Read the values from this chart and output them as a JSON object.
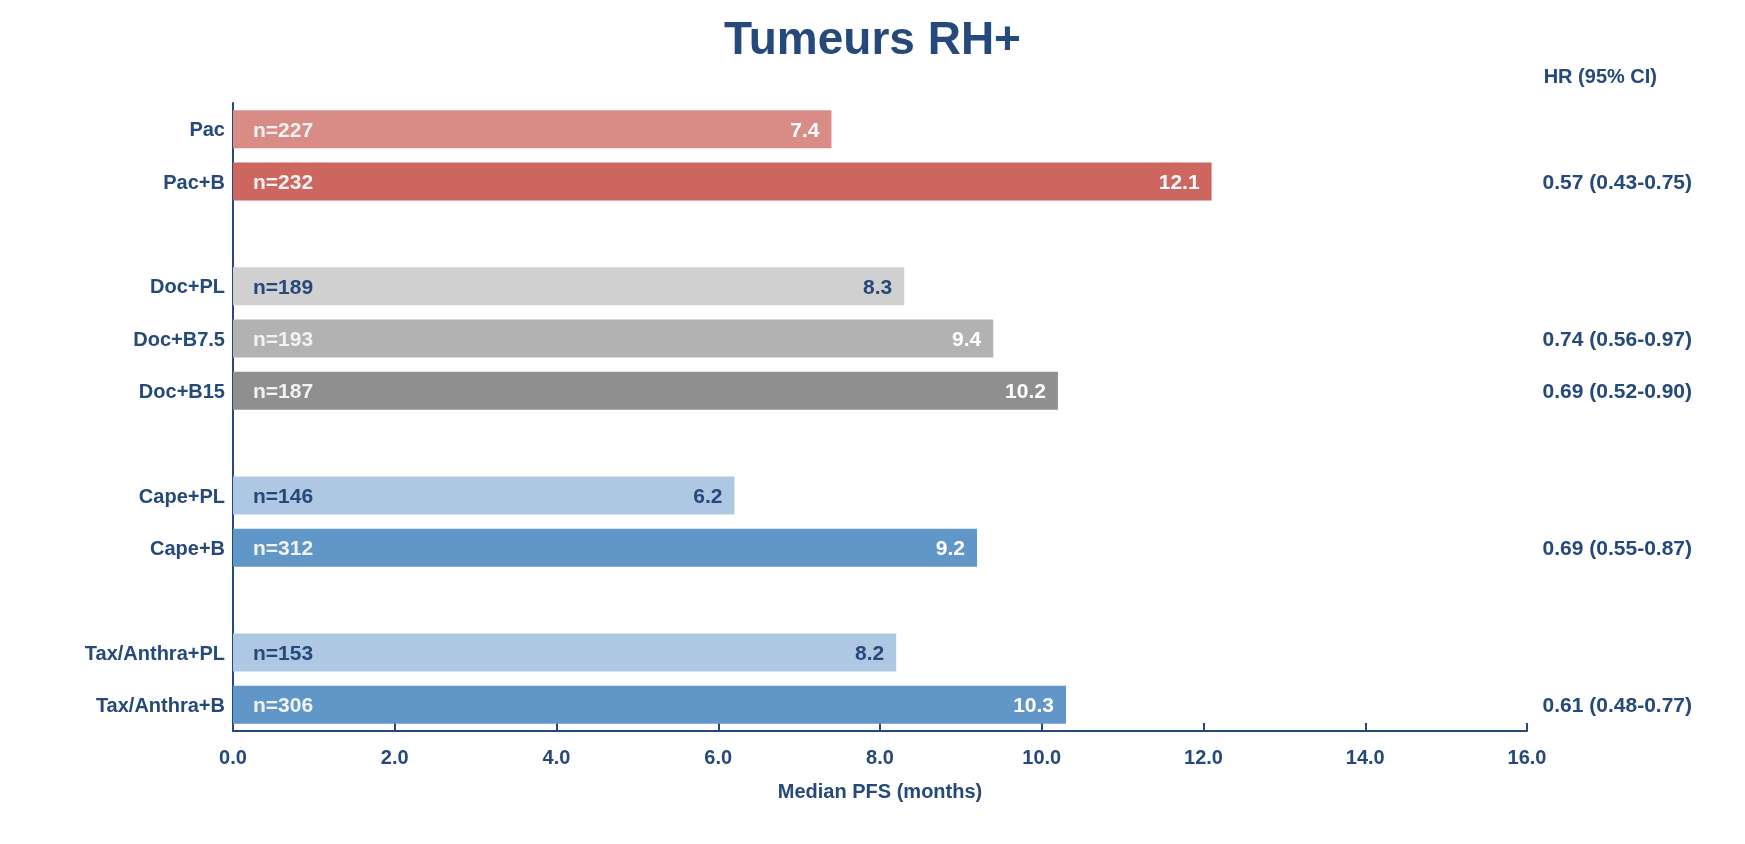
{
  "chart_data": {
    "type": "bar",
    "orientation": "horizontal",
    "title": "Tumeurs RH+",
    "xlabel": "Median PFS (months)",
    "categories": [
      "Pac",
      "Pac+B",
      null,
      "Doc+PL",
      "Doc+B7.5",
      "Doc+B15",
      null,
      "Cape+PL",
      "Cape+B",
      null,
      "Tax/Anthra+PL",
      "Tax/Anthra+B"
    ],
    "values": [
      7.4,
      12.1,
      null,
      8.3,
      9.4,
      10.2,
      null,
      6.2,
      9.2,
      null,
      8.2,
      10.3
    ],
    "colors": [
      "#d98b85",
      "#cd665e",
      null,
      "#d0d0d0",
      "#b2b2b2",
      "#8f8f8f",
      null,
      "#aec7e3",
      "#6096c8",
      null,
      "#aec7e3",
      "#6096c8"
    ],
    "data_labels": true,
    "xlim": [
      0,
      16
    ],
    "xticks": [
      {
        "value": 0,
        "label": "0.0"
      },
      {
        "value": 2,
        "label": "2.0"
      },
      {
        "value": 4,
        "label": "4.0"
      },
      {
        "value": 6,
        "label": "6.0"
      },
      {
        "value": 8,
        "label": "8.0"
      },
      {
        "value": 10,
        "label": "10.0"
      },
      {
        "value": 12,
        "label": "12.0"
      },
      {
        "value": 14,
        "label": "14.0"
      },
      {
        "value": 16,
        "label": "16.0"
      }
    ],
    "grid": false,
    "annotations": [
      "HR (95% CI)",
      {
        "text": "n=227",
        "y": "Pac"
      },
      {
        "text": "n=232",
        "y": "Pac+B"
      },
      {
        "text": "n=189",
        "y": "Doc+PL"
      },
      {
        "text": "n=193",
        "y": "Doc+B7.5"
      },
      {
        "text": "n=187",
        "y": "Doc+B15"
      },
      {
        "text": "n=146",
        "y": "Cape+PL"
      },
      {
        "text": "n=312",
        "y": "Cape+B"
      },
      {
        "text": "n=153",
        "y": "Tax/Anthra+PL"
      },
      {
        "text": "n=306",
        "y": "Tax/Anthra+B"
      },
      "0.57 (0.43-0.75)",
      "0.74 (0.56-0.97)",
      "0.69 (0.52-0.90)",
      "0.69 (0.55-0.87)",
      "0.61 (0.48-0.77)"
    ]
  }
}
